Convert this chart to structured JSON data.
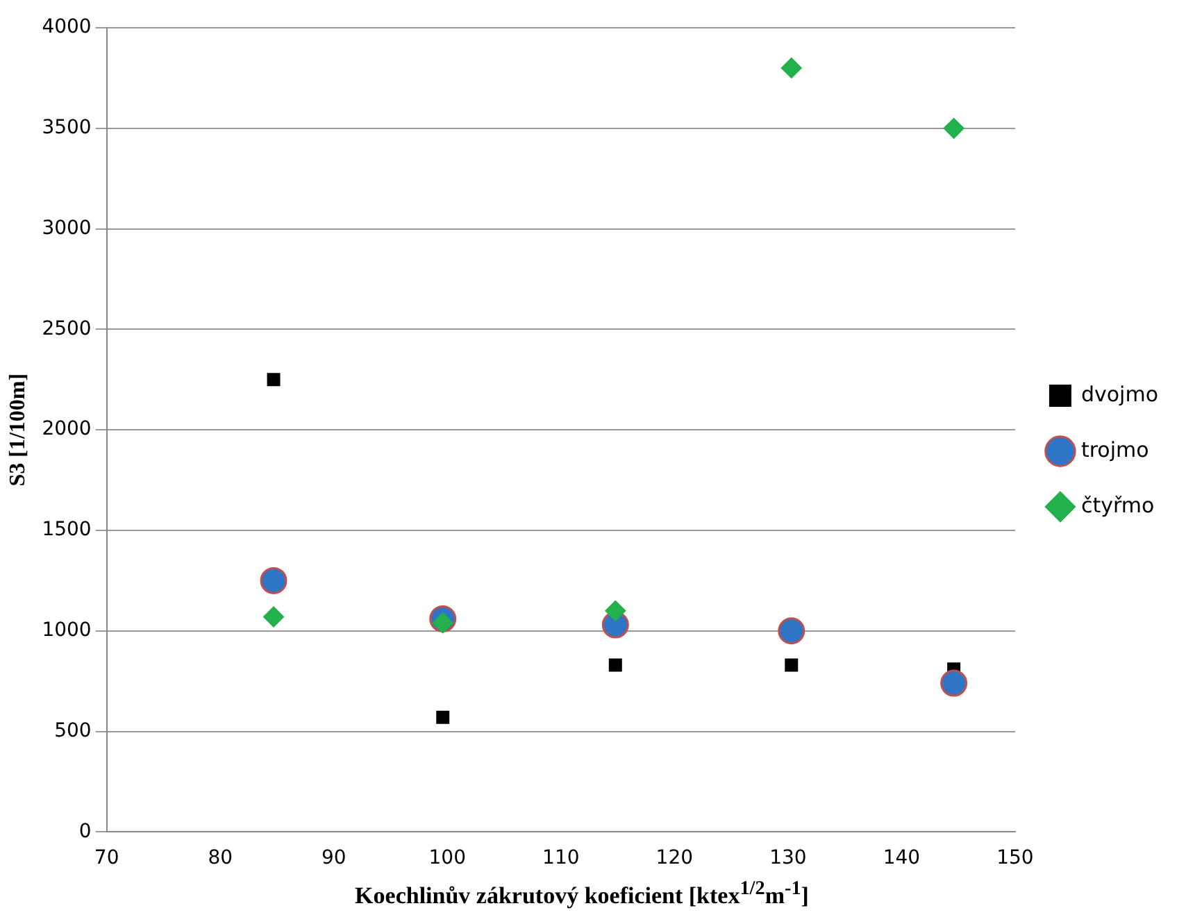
{
  "chart_data": {
    "type": "scatter",
    "xlabel": "Koechlinův zákrutový koeficient [ktex$^{1/2}$m$^{-1}$]",
    "ylabel": "S3 [1/100m]",
    "x": [
      84.7,
      99.6,
      114.8,
      130.3,
      144.6
    ],
    "series": [
      {
        "name": "dvojmo",
        "color": "#000000",
        "marker": "square",
        "values": [
          2250,
          570,
          830,
          830,
          810
        ]
      },
      {
        "name": "trojmo",
        "color": "#2e75c6",
        "marker": "circle",
        "values": [
          1250,
          1060,
          1030,
          1000,
          740
        ]
      },
      {
        "name": "čtyřmo",
        "color": "#22b14c",
        "marker": "diamond",
        "values": [
          1070,
          1040,
          1100,
          3800,
          3500
        ]
      }
    ],
    "xlim": [
      70,
      150
    ],
    "xticks": [
      70,
      80,
      90,
      100,
      110,
      120,
      130,
      140,
      150
    ],
    "ylim": [
      0,
      4000
    ],
    "yticks": [
      0,
      500,
      1000,
      1500,
      2000,
      2500,
      3000,
      3500,
      4000
    ],
    "grid": "y",
    "legend": "right"
  }
}
